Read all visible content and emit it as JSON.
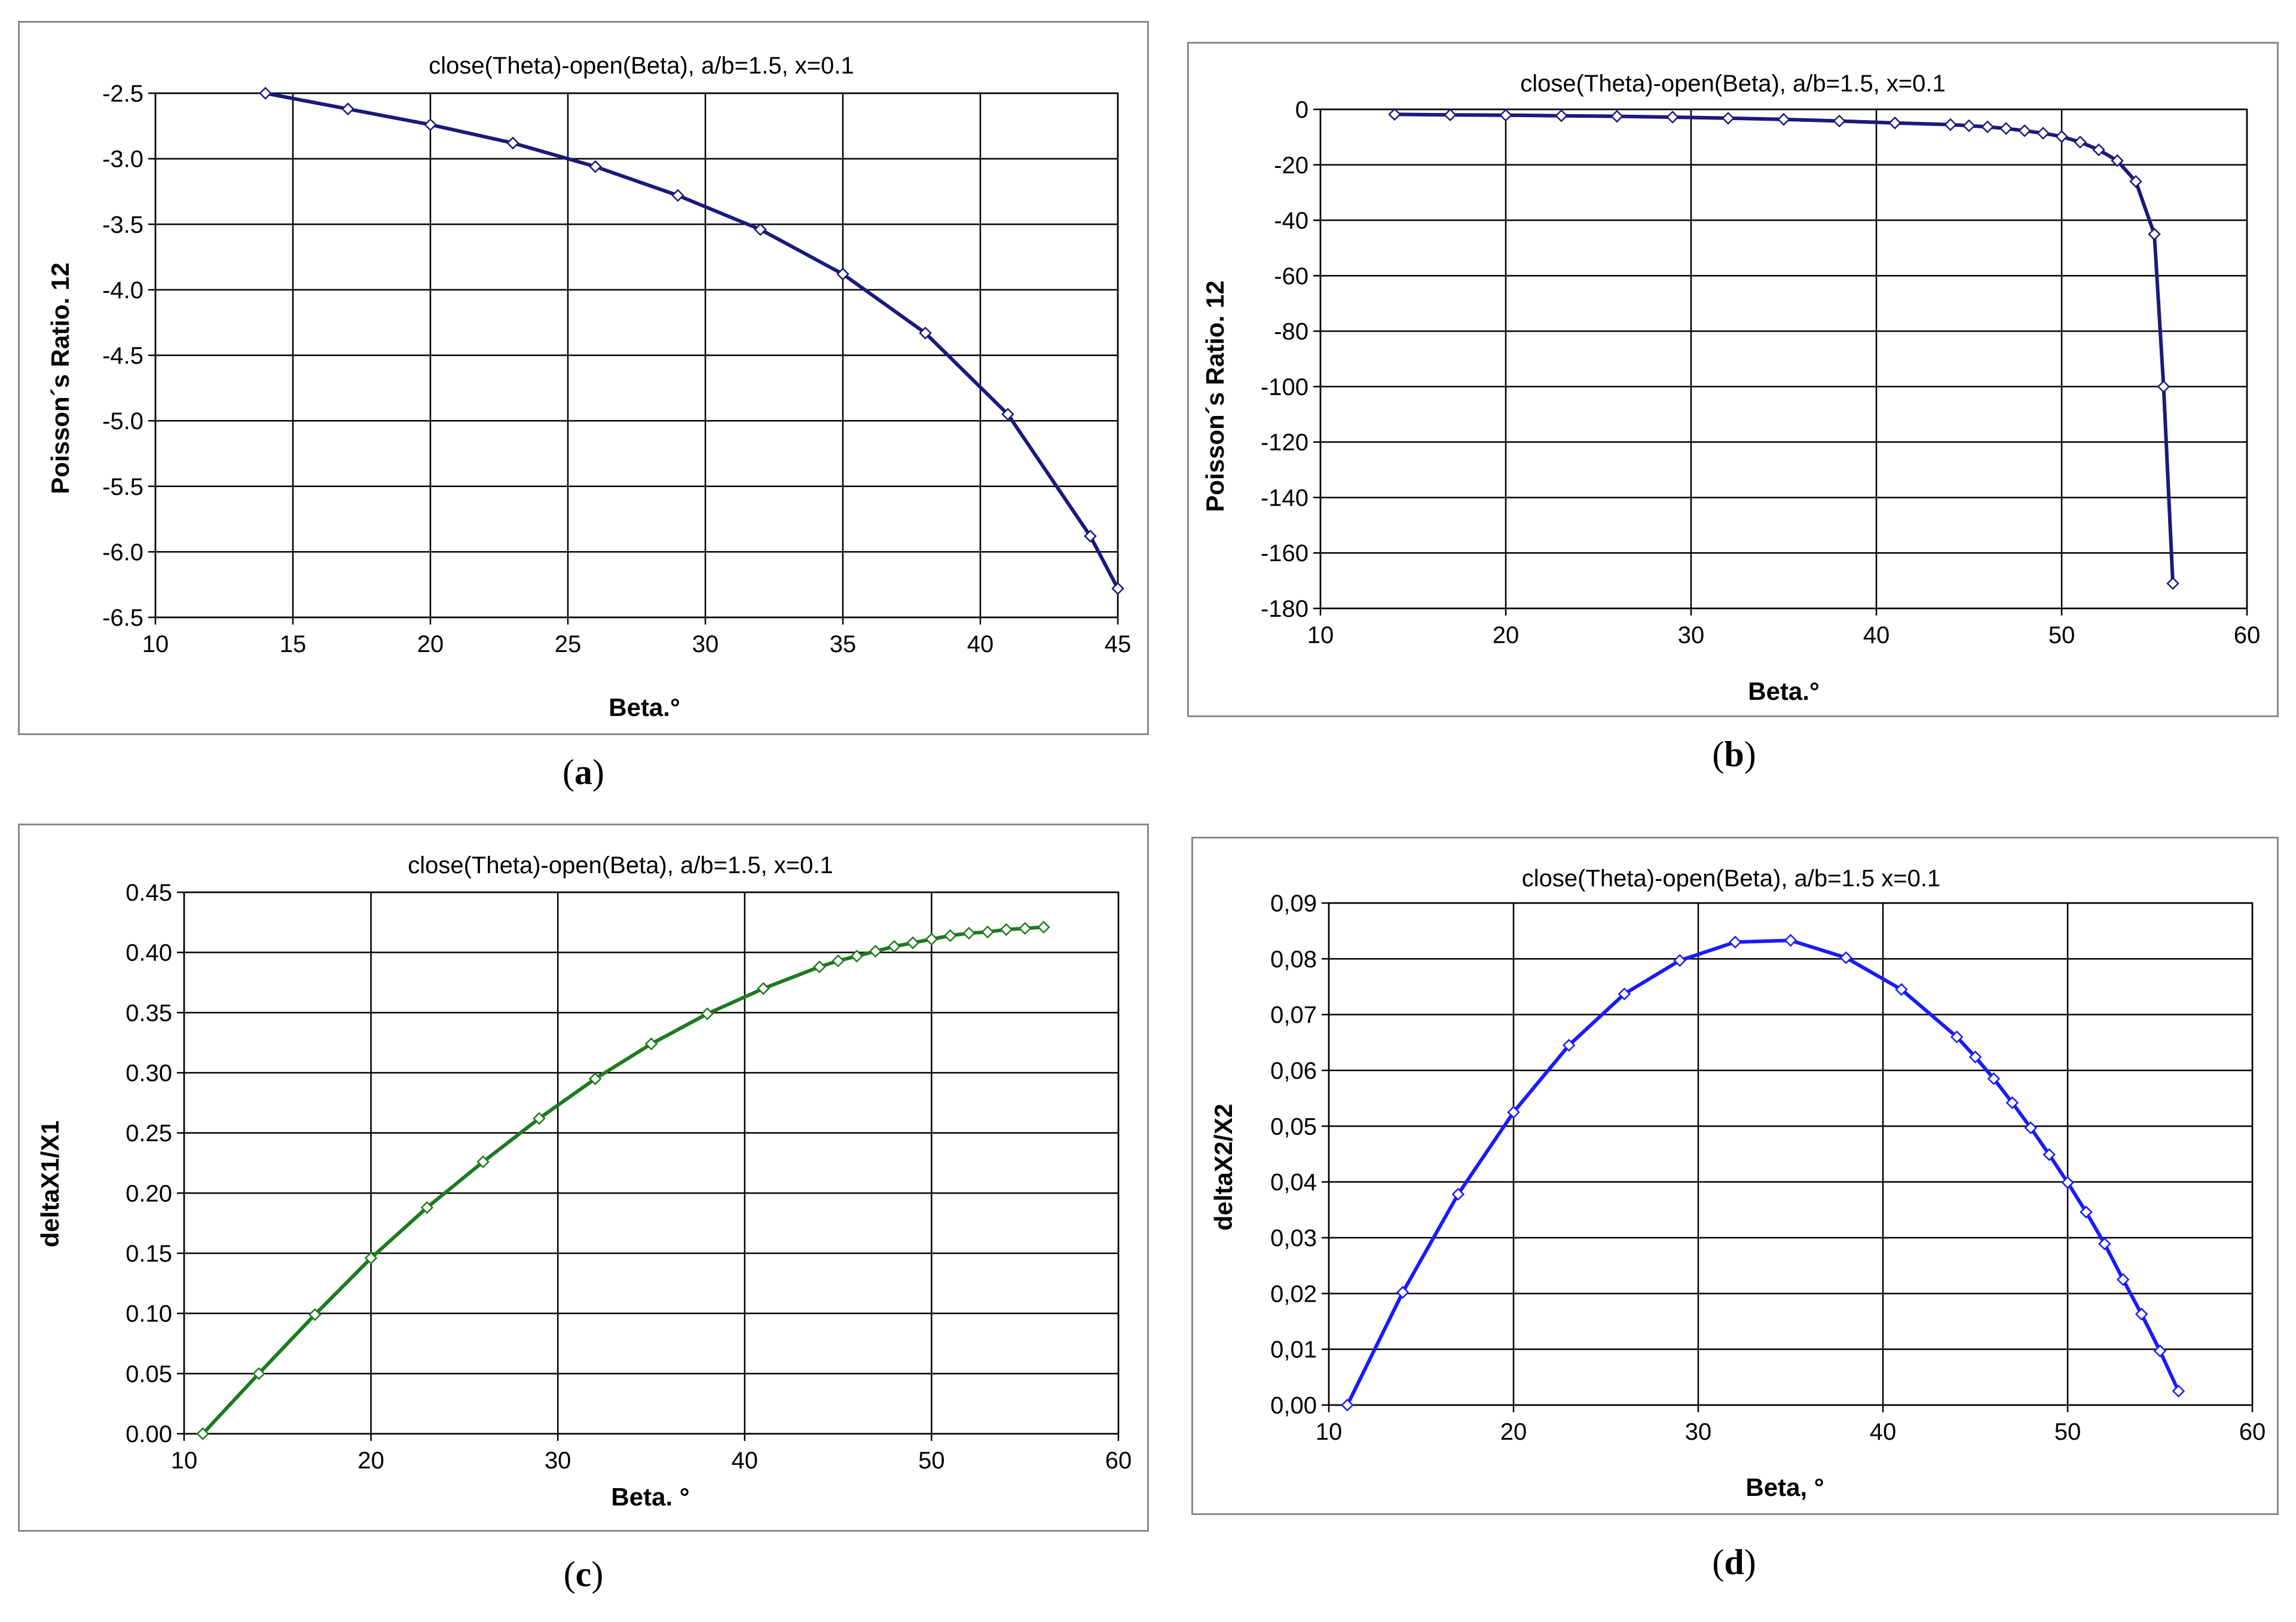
{
  "chart_data": [
    {
      "id": "a",
      "type": "line",
      "caption": "a",
      "title": "close(Theta)-open(Beta), a/b=1.5, x=0.1",
      "xlabel": "Beta.°",
      "ylabel": "Poisson´s Ratio. 12",
      "xlim": [
        10,
        45
      ],
      "ylim": [
        -6.5,
        -2.5
      ],
      "x_ticks": [
        10,
        15,
        20,
        25,
        30,
        35,
        40,
        45
      ],
      "y_ticks": [
        -2.5,
        -3.0,
        -3.5,
        -4.0,
        -4.5,
        -5.0,
        -5.5,
        -6.0,
        -6.5
      ],
      "x_tick_labels": [
        "10",
        "15",
        "20",
        "25",
        "30",
        "35",
        "40",
        "45"
      ],
      "y_tick_labels": [
        "-2.5",
        "-3.0",
        "-3.5",
        "-4.0",
        "-4.5",
        "-5.0",
        "-5.5",
        "-6.0",
        "-6.5"
      ],
      "colors": {
        "line": "#1a1a7a",
        "marker": "#1a1a7a"
      },
      "series": [
        {
          "name": "Poisson's Ratio 12",
          "x": [
            14,
            17,
            20,
            23,
            26,
            29,
            32,
            35,
            38,
            41,
            44,
            45
          ],
          "y": [
            -2.5,
            -2.62,
            -2.74,
            -2.88,
            -3.06,
            -3.28,
            -3.54,
            -3.88,
            -4.33,
            -4.95,
            -5.88,
            -6.28
          ]
        }
      ]
    },
    {
      "id": "b",
      "type": "line",
      "caption": "b",
      "title": "close(Theta)-open(Beta), a/b=1.5, x=0.1",
      "xlabel": "Beta.°",
      "ylabel": "Poisson´s Ratio. 12",
      "xlim": [
        10,
        60
      ],
      "ylim": [
        -180,
        0
      ],
      "x_ticks": [
        10,
        20,
        30,
        40,
        50,
        60
      ],
      "y_ticks": [
        0,
        -20,
        -40,
        -60,
        -80,
        -100,
        -120,
        -140,
        -160,
        -180
      ],
      "x_tick_labels": [
        "10",
        "20",
        "30",
        "40",
        "50",
        "60"
      ],
      "y_tick_labels": [
        "0",
        "-20",
        "-40",
        "-60",
        "-80",
        "-100",
        "-120",
        "-140",
        "-160",
        "-180"
      ],
      "colors": {
        "line": "#1a1a7a",
        "marker": "#1a1a7a"
      },
      "series": [
        {
          "name": "Poisson's Ratio 12",
          "x": [
            14,
            17,
            20,
            23,
            26,
            29,
            32,
            35,
            38,
            41,
            44,
            45,
            46,
            47,
            48,
            49,
            50,
            51,
            52,
            53,
            54,
            55,
            55.5,
            56
          ],
          "y": [
            -1.8,
            -2.0,
            -2.1,
            -2.3,
            -2.5,
            -2.8,
            -3.2,
            -3.6,
            -4.2,
            -4.9,
            -5.5,
            -5.9,
            -6.3,
            -6.9,
            -7.7,
            -8.6,
            -9.8,
            -11.8,
            -14.6,
            -18.5,
            -26,
            -45,
            -100,
            -171
          ]
        }
      ]
    },
    {
      "id": "c",
      "type": "line",
      "caption": "c",
      "title": "close(Theta)-open(Beta), a/b=1.5, x=0.1",
      "xlabel": "Beta. °",
      "ylabel": "deltaX1/X1",
      "xlim": [
        10,
        60
      ],
      "ylim": [
        0,
        0.45
      ],
      "x_ticks": [
        10,
        20,
        30,
        40,
        50,
        60
      ],
      "y_ticks": [
        0,
        0.05,
        0.1,
        0.15,
        0.2,
        0.25,
        0.3,
        0.35,
        0.4,
        0.45
      ],
      "x_tick_labels": [
        "10",
        "20",
        "30",
        "40",
        "50",
        "60"
      ],
      "y_tick_labels": [
        "0.00",
        "0.05",
        "0.10",
        "0.15",
        "0.20",
        "0.25",
        "0.30",
        "0.35",
        "0.40",
        "0.45"
      ],
      "colors": {
        "line": "#1e7a1e",
        "marker": "#1e7a1e"
      },
      "series": [
        {
          "name": "deltaX1/X1",
          "x": [
            11,
            14,
            17,
            20,
            23,
            26,
            29,
            32,
            35,
            38,
            41,
            44,
            45,
            46,
            47,
            48,
            49,
            50,
            51,
            52,
            53,
            54,
            55,
            56
          ],
          "y": [
            0.0,
            0.05,
            0.099,
            0.146,
            0.188,
            0.226,
            0.262,
            0.295,
            0.324,
            0.349,
            0.37,
            0.388,
            0.393,
            0.397,
            0.401,
            0.405,
            0.408,
            0.411,
            0.414,
            0.416,
            0.417,
            0.419,
            0.42,
            0.421
          ]
        }
      ]
    },
    {
      "id": "d",
      "type": "line",
      "caption": "d",
      "title": "close(Theta)-open(Beta), a/b=1.5 x=0.1",
      "xlabel": "Beta, °",
      "ylabel": "deltaX2/X2",
      "xlim": [
        10,
        60
      ],
      "ylim": [
        0,
        0.09
      ],
      "x_ticks": [
        10,
        20,
        30,
        40,
        50,
        60
      ],
      "y_ticks": [
        0,
        0.01,
        0.02,
        0.03,
        0.04,
        0.05,
        0.06,
        0.07,
        0.08,
        0.09
      ],
      "x_tick_labels": [
        "10",
        "20",
        "30",
        "40",
        "50",
        "60"
      ],
      "y_tick_labels": [
        "0,00",
        "0,01",
        "0,02",
        "0,03",
        "0,04",
        "0,05",
        "0,06",
        "0,07",
        "0,08",
        "0,09"
      ],
      "colors": {
        "line": "#1a1aff",
        "marker": "#1a1aff"
      },
      "series": [
        {
          "name": "deltaX2/X2",
          "x": [
            11,
            14,
            17,
            20,
            23,
            26,
            29,
            32,
            35,
            38,
            41,
            44,
            45,
            46,
            47,
            48,
            49,
            50,
            51,
            52,
            53,
            54,
            55,
            56
          ],
          "y": [
            0.0,
            0.0202,
            0.0378,
            0.0525,
            0.0645,
            0.0737,
            0.0797,
            0.083,
            0.0833,
            0.0802,
            0.0745,
            0.066,
            0.0624,
            0.0585,
            0.0542,
            0.0497,
            0.0449,
            0.0399,
            0.0346,
            0.0289,
            0.0225,
            0.0163,
            0.0097,
            0.0025
          ]
        }
      ]
    }
  ]
}
